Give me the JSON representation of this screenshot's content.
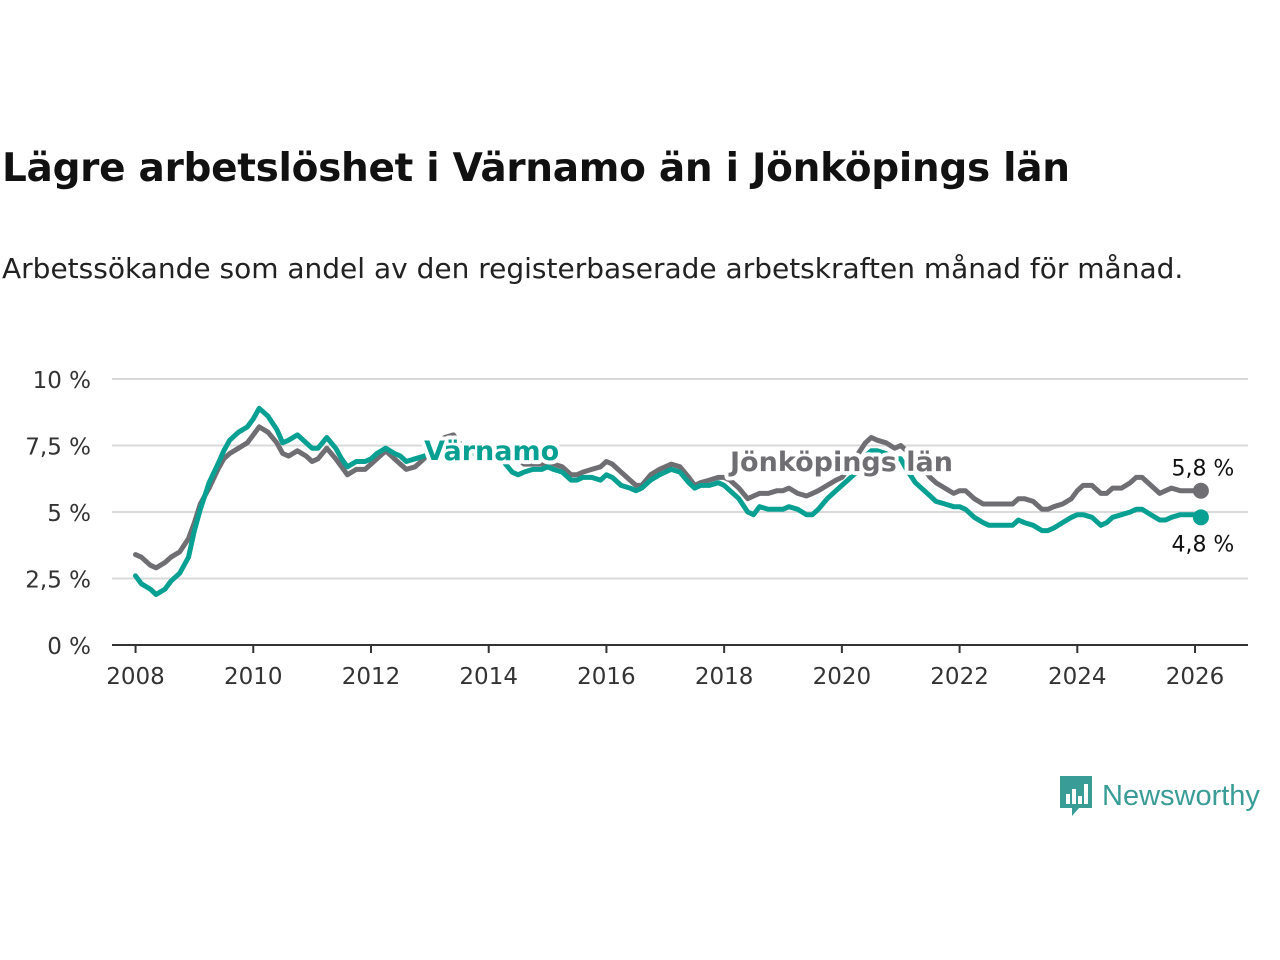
{
  "header": {
    "title": "Lägre arbetslöshet i Värnamo än i Jönköpings län",
    "subtitle": "Arbetssökande som andel av den registerbaserade arbetskraften månad för månad."
  },
  "chart_data": {
    "type": "line",
    "title": "Lägre arbetslöshet i Värnamo än i Jönköpings län",
    "subtitle": "Arbetssökande som andel av den registerbaserade arbetskraften månad för månad.",
    "xlabel": "",
    "ylabel": "",
    "xlim": [
      2007.6,
      2026.9
    ],
    "ylim": [
      0,
      10
    ],
    "x_ticks": [
      2008,
      2010,
      2012,
      2014,
      2016,
      2018,
      2020,
      2022,
      2024,
      2026
    ],
    "x_tick_labels": [
      "2008",
      "2010",
      "2012",
      "2014",
      "2016",
      "2018",
      "2020",
      "2022",
      "2024",
      "2026"
    ],
    "y_ticks": [
      0,
      2.5,
      5,
      7.5,
      10
    ],
    "y_tick_labels": [
      "0 %",
      "2,5 %",
      "5 %",
      "7,5 %",
      "10 %"
    ],
    "grid": "horizontal",
    "series": [
      {
        "name": "Jönköpings län",
        "label": "Jönköpings län",
        "color": "#6f6e73",
        "end_label": "5,8 %",
        "points": [
          [
            2008.0,
            3.4
          ],
          [
            2008.1,
            3.3
          ],
          [
            2008.25,
            3.0
          ],
          [
            2008.35,
            2.9
          ],
          [
            2008.5,
            3.1
          ],
          [
            2008.6,
            3.3
          ],
          [
            2008.75,
            3.5
          ],
          [
            2008.9,
            4.0
          ],
          [
            2009.0,
            4.6
          ],
          [
            2009.1,
            5.3
          ],
          [
            2009.25,
            5.9
          ],
          [
            2009.4,
            6.6
          ],
          [
            2009.5,
            7.0
          ],
          [
            2009.6,
            7.2
          ],
          [
            2009.75,
            7.4
          ],
          [
            2009.9,
            7.6
          ],
          [
            2010.0,
            7.9
          ],
          [
            2010.1,
            8.2
          ],
          [
            2010.25,
            8.0
          ],
          [
            2010.4,
            7.6
          ],
          [
            2010.5,
            7.2
          ],
          [
            2010.6,
            7.1
          ],
          [
            2010.75,
            7.3
          ],
          [
            2010.9,
            7.1
          ],
          [
            2011.0,
            6.9
          ],
          [
            2011.1,
            7.0
          ],
          [
            2011.25,
            7.4
          ],
          [
            2011.4,
            7.0
          ],
          [
            2011.5,
            6.7
          ],
          [
            2011.6,
            6.4
          ],
          [
            2011.75,
            6.6
          ],
          [
            2011.9,
            6.6
          ],
          [
            2012.0,
            6.8
          ],
          [
            2012.1,
            7.0
          ],
          [
            2012.25,
            7.3
          ],
          [
            2012.4,
            7.0
          ],
          [
            2012.5,
            6.8
          ],
          [
            2012.6,
            6.6
          ],
          [
            2012.75,
            6.7
          ],
          [
            2012.9,
            7.0
          ],
          [
            2013.0,
            7.3
          ],
          [
            2013.1,
            7.5
          ],
          [
            2013.25,
            7.8
          ],
          [
            2013.4,
            7.9
          ],
          [
            2013.5,
            7.6
          ],
          [
            2013.6,
            7.3
          ],
          [
            2013.75,
            7.3
          ],
          [
            2013.9,
            7.4
          ],
          [
            2014.0,
            7.5
          ],
          [
            2014.1,
            7.4
          ],
          [
            2014.25,
            7.3
          ],
          [
            2014.4,
            7.0
          ],
          [
            2014.5,
            7.0
          ],
          [
            2014.6,
            6.8
          ],
          [
            2014.75,
            6.8
          ],
          [
            2014.9,
            6.8
          ],
          [
            2015.0,
            6.9
          ],
          [
            2015.1,
            6.8
          ],
          [
            2015.25,
            6.7
          ],
          [
            2015.4,
            6.4
          ],
          [
            2015.5,
            6.4
          ],
          [
            2015.6,
            6.5
          ],
          [
            2015.75,
            6.6
          ],
          [
            2015.9,
            6.7
          ],
          [
            2016.0,
            6.9
          ],
          [
            2016.1,
            6.8
          ],
          [
            2016.25,
            6.5
          ],
          [
            2016.4,
            6.2
          ],
          [
            2016.5,
            6.0
          ],
          [
            2016.6,
            6.0
          ],
          [
            2016.75,
            6.4
          ],
          [
            2016.9,
            6.6
          ],
          [
            2017.0,
            6.7
          ],
          [
            2017.1,
            6.8
          ],
          [
            2017.25,
            6.7
          ],
          [
            2017.4,
            6.3
          ],
          [
            2017.5,
            6.0
          ],
          [
            2017.6,
            6.1
          ],
          [
            2017.75,
            6.2
          ],
          [
            2017.9,
            6.3
          ],
          [
            2018.0,
            6.3
          ],
          [
            2018.1,
            6.2
          ],
          [
            2018.25,
            5.9
          ],
          [
            2018.4,
            5.5
          ],
          [
            2018.5,
            5.6
          ],
          [
            2018.6,
            5.7
          ],
          [
            2018.75,
            5.7
          ],
          [
            2018.9,
            5.8
          ],
          [
            2019.0,
            5.8
          ],
          [
            2019.1,
            5.9
          ],
          [
            2019.25,
            5.7
          ],
          [
            2019.4,
            5.6
          ],
          [
            2019.5,
            5.7
          ],
          [
            2019.6,
            5.8
          ],
          [
            2019.75,
            6.0
          ],
          [
            2019.9,
            6.2
          ],
          [
            2020.0,
            6.3
          ],
          [
            2020.1,
            6.6
          ],
          [
            2020.25,
            7.1
          ],
          [
            2020.4,
            7.6
          ],
          [
            2020.5,
            7.8
          ],
          [
            2020.6,
            7.7
          ],
          [
            2020.75,
            7.6
          ],
          [
            2020.9,
            7.4
          ],
          [
            2021.0,
            7.5
          ],
          [
            2021.1,
            7.3
          ],
          [
            2021.25,
            6.9
          ],
          [
            2021.4,
            6.6
          ],
          [
            2021.5,
            6.3
          ],
          [
            2021.6,
            6.1
          ],
          [
            2021.75,
            5.9
          ],
          [
            2021.9,
            5.7
          ],
          [
            2022.0,
            5.8
          ],
          [
            2022.1,
            5.8
          ],
          [
            2022.25,
            5.5
          ],
          [
            2022.4,
            5.3
          ],
          [
            2022.5,
            5.3
          ],
          [
            2022.6,
            5.3
          ],
          [
            2022.75,
            5.3
          ],
          [
            2022.9,
            5.3
          ],
          [
            2023.0,
            5.5
          ],
          [
            2023.1,
            5.5
          ],
          [
            2023.25,
            5.4
          ],
          [
            2023.4,
            5.1
          ],
          [
            2023.5,
            5.1
          ],
          [
            2023.6,
            5.2
          ],
          [
            2023.75,
            5.3
          ],
          [
            2023.9,
            5.5
          ],
          [
            2024.0,
            5.8
          ],
          [
            2024.1,
            6.0
          ],
          [
            2024.25,
            6.0
          ],
          [
            2024.4,
            5.7
          ],
          [
            2024.5,
            5.7
          ],
          [
            2024.6,
            5.9
          ],
          [
            2024.75,
            5.9
          ],
          [
            2024.9,
            6.1
          ],
          [
            2025.0,
            6.3
          ],
          [
            2025.1,
            6.3
          ],
          [
            2025.25,
            6.0
          ],
          [
            2025.4,
            5.7
          ],
          [
            2025.5,
            5.8
          ],
          [
            2025.6,
            5.9
          ],
          [
            2025.75,
            5.8
          ],
          [
            2025.9,
            5.8
          ],
          [
            2026.0,
            5.8
          ],
          [
            2026.1,
            5.8
          ]
        ]
      },
      {
        "name": "Värnamo",
        "label": "Värnamo",
        "color": "#07a092",
        "end_label": "4,8 %",
        "points": [
          [
            2008.0,
            2.6
          ],
          [
            2008.1,
            2.3
          ],
          [
            2008.25,
            2.1
          ],
          [
            2008.35,
            1.9
          ],
          [
            2008.5,
            2.1
          ],
          [
            2008.6,
            2.4
          ],
          [
            2008.75,
            2.7
          ],
          [
            2008.9,
            3.3
          ],
          [
            2009.0,
            4.3
          ],
          [
            2009.1,
            5.1
          ],
          [
            2009.25,
            6.1
          ],
          [
            2009.4,
            6.8
          ],
          [
            2009.5,
            7.3
          ],
          [
            2009.6,
            7.7
          ],
          [
            2009.75,
            8.0
          ],
          [
            2009.9,
            8.2
          ],
          [
            2010.0,
            8.5
          ],
          [
            2010.1,
            8.9
          ],
          [
            2010.25,
            8.6
          ],
          [
            2010.4,
            8.1
          ],
          [
            2010.5,
            7.6
          ],
          [
            2010.6,
            7.7
          ],
          [
            2010.75,
            7.9
          ],
          [
            2010.9,
            7.6
          ],
          [
            2011.0,
            7.4
          ],
          [
            2011.1,
            7.4
          ],
          [
            2011.25,
            7.8
          ],
          [
            2011.4,
            7.4
          ],
          [
            2011.5,
            7.0
          ],
          [
            2011.6,
            6.7
          ],
          [
            2011.75,
            6.9
          ],
          [
            2011.9,
            6.9
          ],
          [
            2012.0,
            7.0
          ],
          [
            2012.1,
            7.2
          ],
          [
            2012.25,
            7.4
          ],
          [
            2012.4,
            7.2
          ],
          [
            2012.5,
            7.1
          ],
          [
            2012.6,
            6.9
          ],
          [
            2012.75,
            7.0
          ],
          [
            2012.9,
            7.1
          ],
          [
            2013.0,
            7.2
          ],
          [
            2013.1,
            7.3
          ],
          [
            2013.25,
            7.4
          ],
          [
            2013.4,
            7.5
          ],
          [
            2013.5,
            7.3
          ],
          [
            2013.6,
            7.2
          ],
          [
            2013.75,
            7.2
          ],
          [
            2013.9,
            7.3
          ],
          [
            2014.0,
            7.3
          ],
          [
            2014.1,
            7.1
          ],
          [
            2014.25,
            6.9
          ],
          [
            2014.4,
            6.5
          ],
          [
            2014.5,
            6.4
          ],
          [
            2014.6,
            6.5
          ],
          [
            2014.75,
            6.6
          ],
          [
            2014.9,
            6.6
          ],
          [
            2015.0,
            6.7
          ],
          [
            2015.1,
            6.6
          ],
          [
            2015.25,
            6.5
          ],
          [
            2015.4,
            6.2
          ],
          [
            2015.5,
            6.2
          ],
          [
            2015.6,
            6.3
          ],
          [
            2015.75,
            6.3
          ],
          [
            2015.9,
            6.2
          ],
          [
            2016.0,
            6.4
          ],
          [
            2016.1,
            6.3
          ],
          [
            2016.25,
            6.0
          ],
          [
            2016.4,
            5.9
          ],
          [
            2016.5,
            5.8
          ],
          [
            2016.6,
            5.9
          ],
          [
            2016.75,
            6.2
          ],
          [
            2016.9,
            6.4
          ],
          [
            2017.0,
            6.5
          ],
          [
            2017.1,
            6.6
          ],
          [
            2017.25,
            6.5
          ],
          [
            2017.4,
            6.1
          ],
          [
            2017.5,
            5.9
          ],
          [
            2017.6,
            6.0
          ],
          [
            2017.75,
            6.0
          ],
          [
            2017.9,
            6.1
          ],
          [
            2018.0,
            6.0
          ],
          [
            2018.1,
            5.8
          ],
          [
            2018.25,
            5.5
          ],
          [
            2018.4,
            5.0
          ],
          [
            2018.5,
            4.9
          ],
          [
            2018.6,
            5.2
          ],
          [
            2018.75,
            5.1
          ],
          [
            2018.9,
            5.1
          ],
          [
            2019.0,
            5.1
          ],
          [
            2019.1,
            5.2
          ],
          [
            2019.25,
            5.1
          ],
          [
            2019.4,
            4.9
          ],
          [
            2019.5,
            4.9
          ],
          [
            2019.6,
            5.1
          ],
          [
            2019.75,
            5.5
          ],
          [
            2019.9,
            5.8
          ],
          [
            2020.0,
            6.0
          ],
          [
            2020.1,
            6.2
          ],
          [
            2020.25,
            6.5
          ],
          [
            2020.4,
            7.1
          ],
          [
            2020.5,
            7.3
          ],
          [
            2020.6,
            7.3
          ],
          [
            2020.75,
            7.2
          ],
          [
            2020.9,
            7.0
          ],
          [
            2021.0,
            7.0
          ],
          [
            2021.1,
            6.6
          ],
          [
            2021.25,
            6.1
          ],
          [
            2021.4,
            5.8
          ],
          [
            2021.5,
            5.6
          ],
          [
            2021.6,
            5.4
          ],
          [
            2021.75,
            5.3
          ],
          [
            2021.9,
            5.2
          ],
          [
            2022.0,
            5.2
          ],
          [
            2022.1,
            5.1
          ],
          [
            2022.25,
            4.8
          ],
          [
            2022.4,
            4.6
          ],
          [
            2022.5,
            4.5
          ],
          [
            2022.6,
            4.5
          ],
          [
            2022.75,
            4.5
          ],
          [
            2022.9,
            4.5
          ],
          [
            2023.0,
            4.7
          ],
          [
            2023.1,
            4.6
          ],
          [
            2023.25,
            4.5
          ],
          [
            2023.4,
            4.3
          ],
          [
            2023.5,
            4.3
          ],
          [
            2023.6,
            4.4
          ],
          [
            2023.75,
            4.6
          ],
          [
            2023.9,
            4.8
          ],
          [
            2024.0,
            4.9
          ],
          [
            2024.1,
            4.9
          ],
          [
            2024.25,
            4.8
          ],
          [
            2024.4,
            4.5
          ],
          [
            2024.5,
            4.6
          ],
          [
            2024.6,
            4.8
          ],
          [
            2024.75,
            4.9
          ],
          [
            2024.9,
            5.0
          ],
          [
            2025.0,
            5.1
          ],
          [
            2025.1,
            5.1
          ],
          [
            2025.25,
            4.9
          ],
          [
            2025.4,
            4.7
          ],
          [
            2025.5,
            4.7
          ],
          [
            2025.6,
            4.8
          ],
          [
            2025.75,
            4.9
          ],
          [
            2025.9,
            4.9
          ],
          [
            2026.0,
            4.9
          ],
          [
            2026.1,
            4.8
          ]
        ]
      }
    ]
  },
  "branding": {
    "logo_text": "Newsworthy",
    "logo_color": "#3a9c96"
  }
}
